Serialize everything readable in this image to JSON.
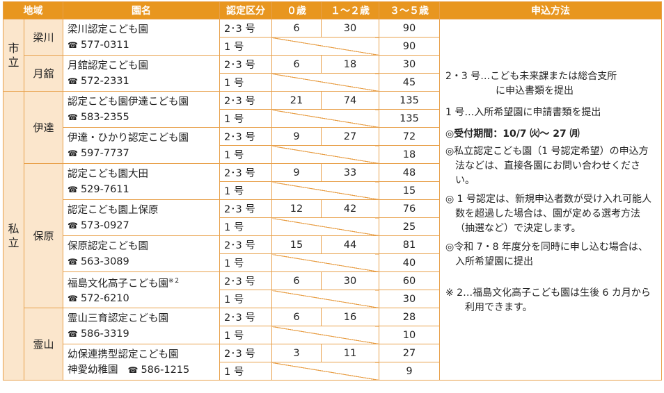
{
  "header": {
    "area": "地域",
    "name": "園名",
    "kubun": "認定区分",
    "age0": "０歳",
    "age12": "１～２歳",
    "age35": "３～５歳",
    "method": "申込方法"
  },
  "regions": [
    {
      "label": "市立"
    },
    {
      "label": "私立"
    }
  ],
  "areas": [
    "梁川",
    "月舘",
    "伊達",
    "保原",
    "霊山"
  ],
  "schools": [
    {
      "name": "梁川認定こども園",
      "tel": "577-0311",
      "icon": "phone-icon",
      "row1": {
        "kubun": "2･3 号",
        "age0": "6",
        "age12": "30",
        "age35": "90"
      },
      "row2": {
        "kubun": "1 号",
        "age35": "90"
      }
    },
    {
      "name": "月舘認定こども園",
      "tel": "572-2331",
      "icon": "phone-icon",
      "row1": {
        "kubun": "2･3 号",
        "age0": "6",
        "age12": "18",
        "age35": "30"
      },
      "row2": {
        "kubun": "1 号",
        "age35": "45"
      }
    },
    {
      "name": "認定こども園伊達こども園",
      "tel": "583-2355",
      "icon": "phone-icon",
      "row1": {
        "kubun": "2･3 号",
        "age0": "21",
        "age12": "74",
        "age35": "135"
      },
      "row2": {
        "kubun": "1 号",
        "age35": "135"
      }
    },
    {
      "name": "伊達・ひかり認定こども園",
      "tel": "597-7737",
      "icon": "phone-icon",
      "row1": {
        "kubun": "2･3 号",
        "age0": "9",
        "age12": "27",
        "age35": "72"
      },
      "row2": {
        "kubun": "1 号",
        "age35": "18"
      }
    },
    {
      "name": "認定こども園大田",
      "tel": "529-7611",
      "icon": "phone-icon",
      "row1": {
        "kubun": "2･3 号",
        "age0": "9",
        "age12": "33",
        "age35": "48"
      },
      "row2": {
        "kubun": "1 号",
        "age35": "15"
      }
    },
    {
      "name": "認定こども園上保原",
      "tel": "573-0927",
      "icon": "phone-icon",
      "row1": {
        "kubun": "2･3 号",
        "age0": "12",
        "age12": "42",
        "age35": "76"
      },
      "row2": {
        "kubun": "1 号",
        "age35": "25"
      }
    },
    {
      "name": "保原認定こども園",
      "tel": "563-3089",
      "icon": "phone-icon",
      "row1": {
        "kubun": "2･3 号",
        "age0": "15",
        "age12": "44",
        "age35": "81"
      },
      "row2": {
        "kubun": "1 号",
        "age35": "40"
      }
    },
    {
      "name": "福島文化高子こども園",
      "note_mark": "※２",
      "tel": "572-6210",
      "icon": "phone-icon",
      "row1": {
        "kubun": "2･3 号",
        "age0": "6",
        "age12": "30",
        "age35": "60"
      },
      "row2": {
        "kubun": "1 号",
        "age35": "30"
      }
    },
    {
      "name": "霊山三育認定こども園",
      "tel": "586-3319",
      "icon": "phone-icon",
      "row1": {
        "kubun": "2･3 号",
        "age0": "6",
        "age12": "16",
        "age35": "28"
      },
      "row2": {
        "kubun": "1 号",
        "age35": "10"
      }
    },
    {
      "name": "幼保連携型認定こども園",
      "name2": "神愛幼稚園",
      "tel": "586-1215",
      "icon": "phone-icon",
      "row1": {
        "kubun": "2･3 号",
        "age0": "3",
        "age12": "11",
        "age35": "27"
      },
      "row2": {
        "kubun": "1 号",
        "age35": "9"
      }
    }
  ],
  "method": {
    "line1a": "2・3 号…こども未来課または総合支所",
    "line1b": "に申込書類を提出",
    "line2": "1 号…入所希望園に申請書類を提出",
    "period": "◎受付期間：10/7 ㈫～ 27 ㈪",
    "p1": "◎私立認定こども園（1 号認定希望）の申込方法などは、直接各園にお問い合わせください。",
    "p2": "◎ 1 号認定は、新規申込者数が受け入れ可能人数を超過した場合は、園が定める選考方法（抽選など）で決定します。",
    "p3": "◎令和 7・8 年度分を同時に申し込む場合は、入所希望園に提出",
    "note": "※ 2…福島文化高子こども園は生後 6 カ月から利用できます。"
  }
}
